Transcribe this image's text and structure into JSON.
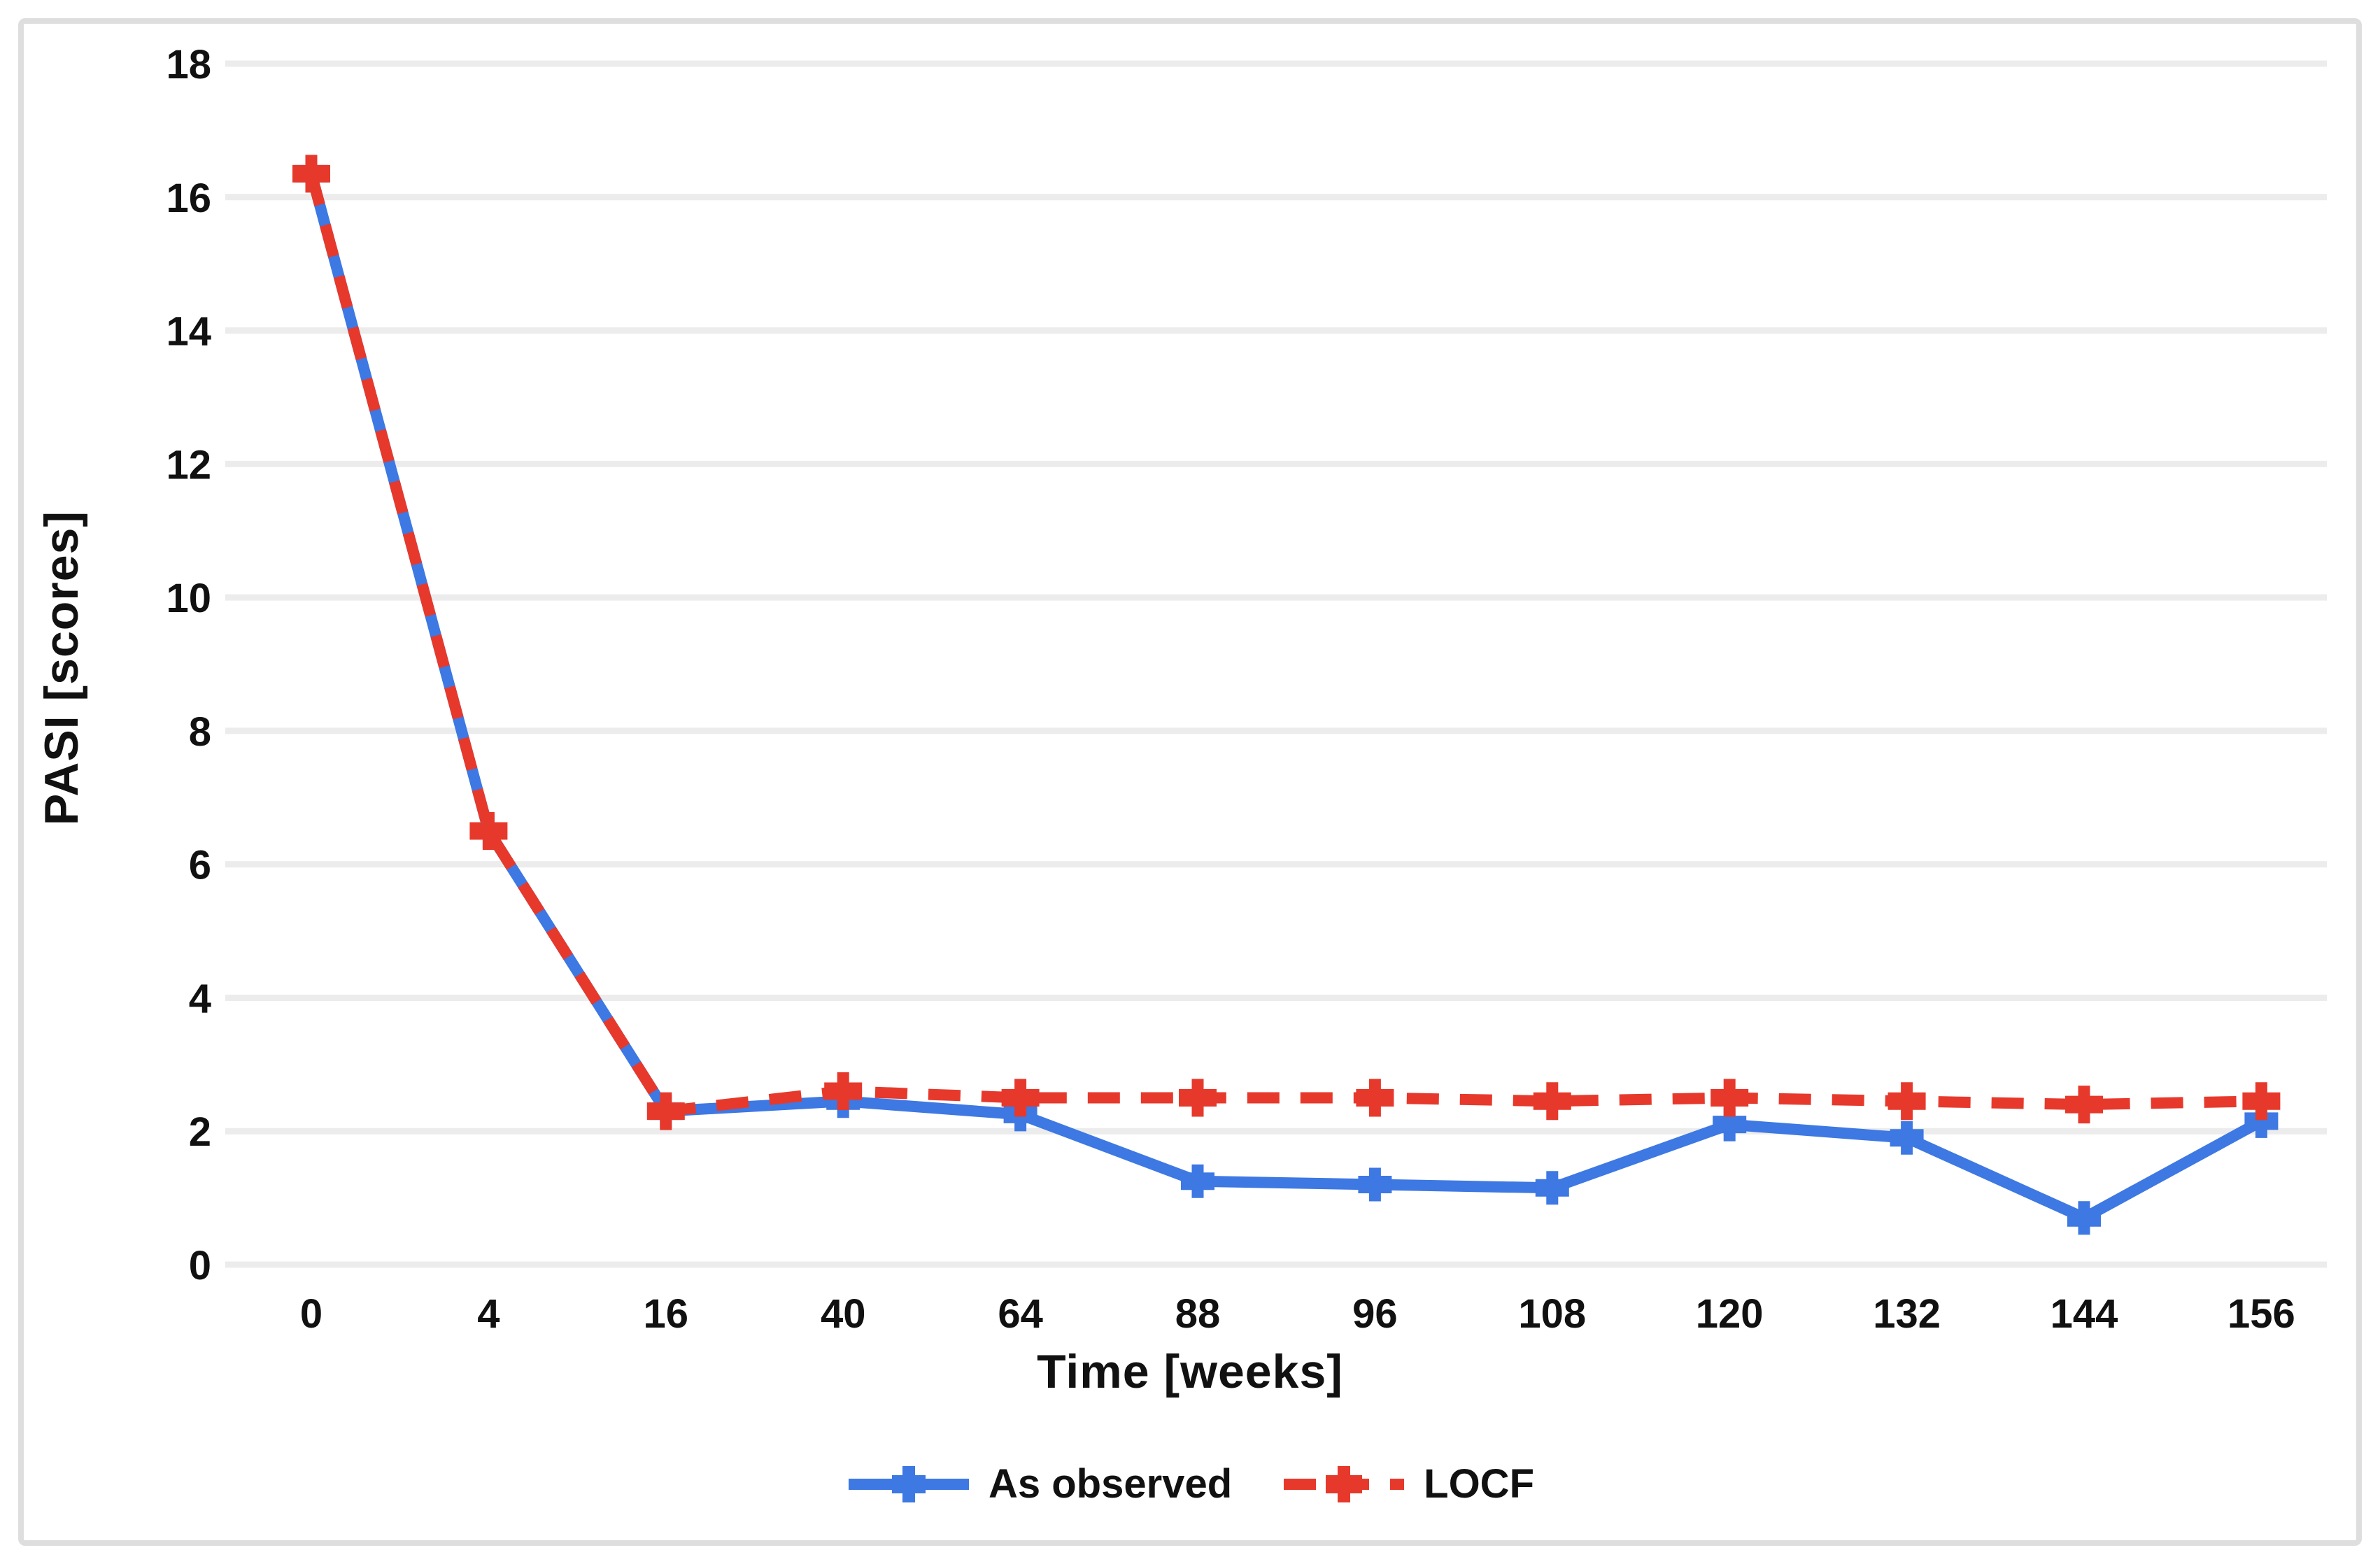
{
  "chart_data": {
    "type": "line",
    "title": "",
    "xlabel": "Time [weeks]",
    "ylabel": "PASI [scores]",
    "categories": [
      "0",
      "4",
      "16",
      "40",
      "64",
      "88",
      "96",
      "108",
      "120",
      "132",
      "144",
      "156"
    ],
    "ylim": [
      0,
      18
    ],
    "ytick_step": 2,
    "ytick_labels": [
      "0",
      "2",
      "4",
      "6",
      "8",
      "10",
      "12",
      "14",
      "16",
      "18"
    ],
    "grid": "horizontal-only",
    "legend_position": "bottom-center",
    "series": [
      {
        "name": "As observed",
        "color": "#3d78e3",
        "line_style": "solid",
        "marker": "plus",
        "values": [
          16.35,
          6.5,
          2.3,
          2.45,
          2.25,
          1.25,
          1.2,
          1.15,
          2.1,
          1.9,
          0.7,
          2.15
        ]
      },
      {
        "name": "LOCF",
        "color": "#e6392c",
        "line_style": "dashed",
        "marker": "plus",
        "values": [
          16.35,
          6.5,
          2.3,
          2.6,
          2.5,
          2.5,
          2.5,
          2.45,
          2.5,
          2.45,
          2.4,
          2.45
        ]
      }
    ]
  },
  "axes": {
    "x_title": "Time [weeks]",
    "y_title": "PASI [scores]"
  },
  "legend": {
    "items": [
      {
        "label": "As observed"
      },
      {
        "label": "LOCF"
      }
    ]
  },
  "colors": {
    "observed_blue": "#3d78e3",
    "locf_red": "#e6392c",
    "gridline": "#ececec",
    "label_text": "#111111",
    "frame_border": "#dedede",
    "background": "#ffffff"
  }
}
